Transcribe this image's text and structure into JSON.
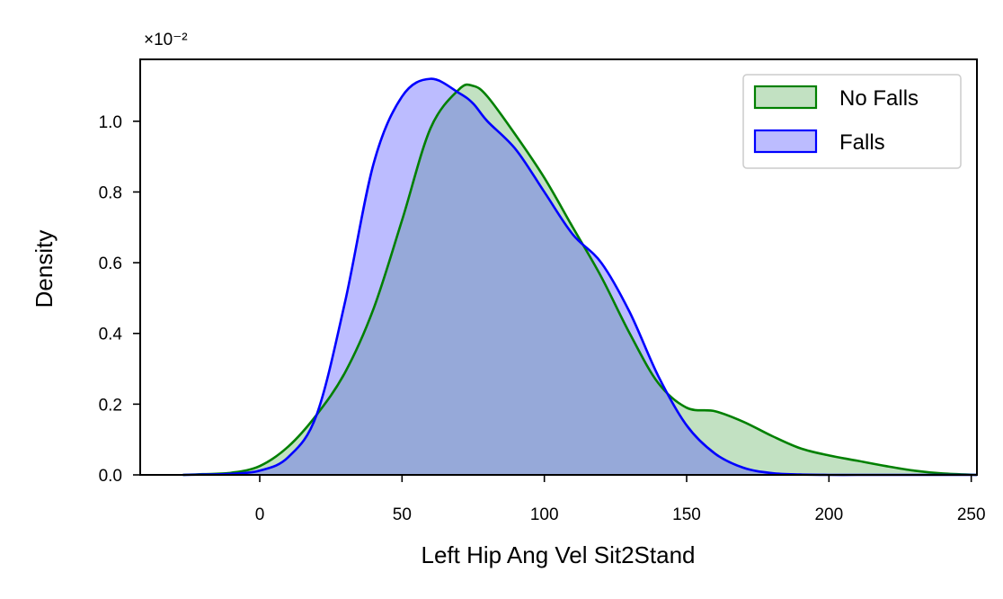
{
  "chart_data": {
    "type": "area",
    "title": "",
    "xlabel": "Left Hip Ang Vel Sit2Stand",
    "ylabel": "Density",
    "y_offset_label": "×10⁻²",
    "xlim": [
      -42,
      252
    ],
    "ylim": [
      0,
      1.175
    ],
    "x_ticks": [
      0,
      50,
      100,
      150,
      200,
      250
    ],
    "y_ticks": [
      0.0,
      0.2,
      0.4,
      0.6,
      0.8,
      1.0
    ],
    "legend_position": "upper right",
    "grid": false,
    "x": [
      -27,
      -20,
      -10,
      0,
      10,
      20,
      30,
      40,
      50,
      60,
      70,
      75,
      80,
      90,
      100,
      110,
      120,
      130,
      140,
      150,
      160,
      170,
      180,
      190,
      200,
      210,
      220,
      230,
      240,
      252
    ],
    "series": [
      {
        "name": "No Falls",
        "line_color": "#008000",
        "fill_color": "rgba(0,128,0,0.24)",
        "values": [
          0.0,
          0.002,
          0.006,
          0.025,
          0.08,
          0.17,
          0.29,
          0.47,
          0.72,
          0.98,
          1.09,
          1.1,
          1.07,
          0.96,
          0.84,
          0.7,
          0.56,
          0.4,
          0.26,
          0.19,
          0.18,
          0.15,
          0.11,
          0.075,
          0.055,
          0.04,
          0.025,
          0.012,
          0.004,
          0.0
        ]
      },
      {
        "name": "Falls",
        "line_color": "#0000ff",
        "fill_color": "rgba(80,80,255,0.38)",
        "values": [
          0.0,
          0.001,
          0.003,
          0.012,
          0.05,
          0.17,
          0.49,
          0.88,
          1.07,
          1.12,
          1.08,
          1.05,
          1.0,
          0.92,
          0.8,
          0.68,
          0.6,
          0.46,
          0.28,
          0.14,
          0.06,
          0.02,
          0.005,
          0.001,
          0.0,
          0.0,
          0.0,
          0.0,
          0.0,
          0.0
        ]
      }
    ]
  }
}
